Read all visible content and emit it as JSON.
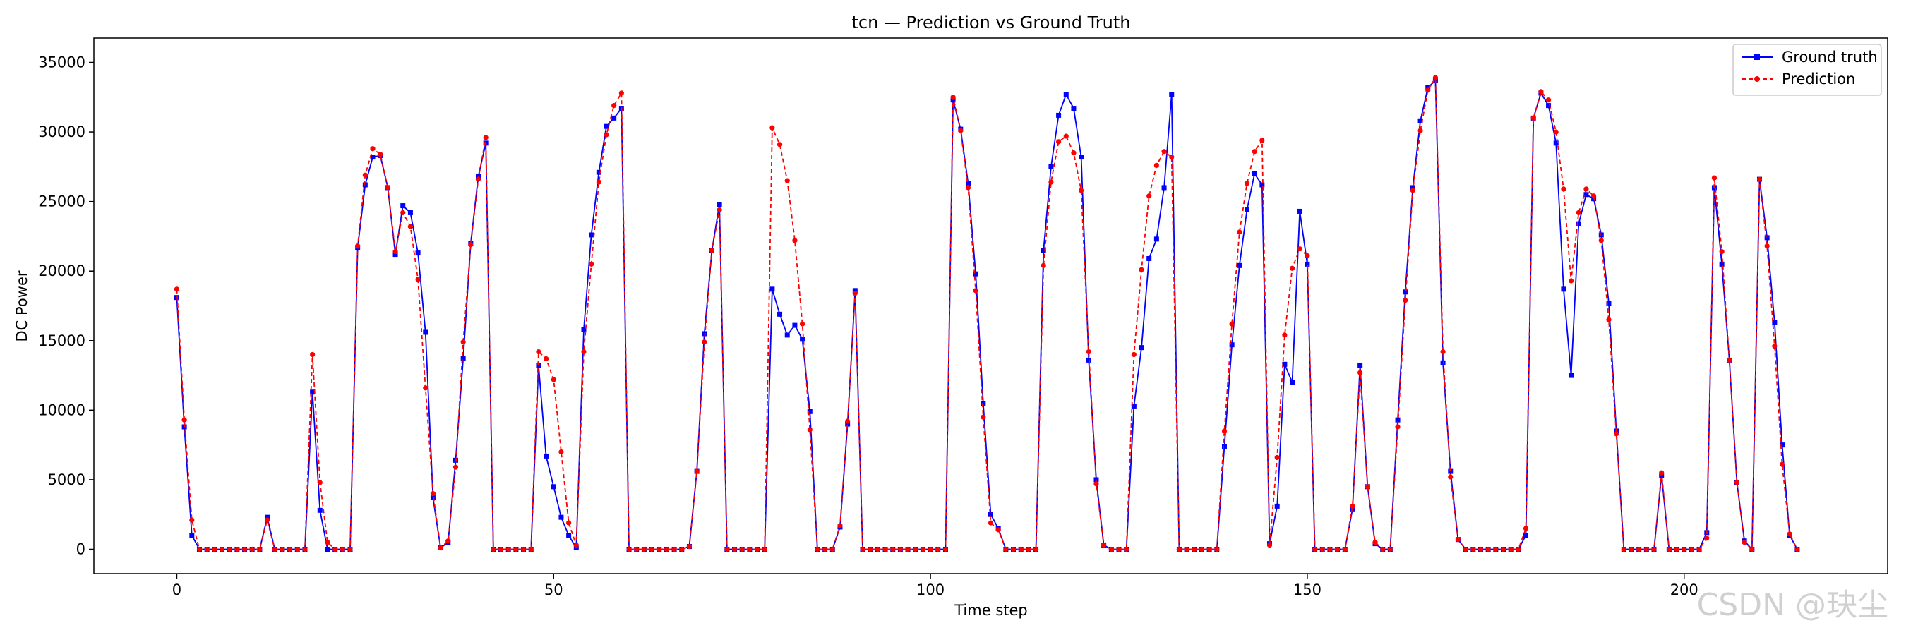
{
  "watermark": "CSDN @玦尘",
  "colors": {
    "ground_truth": "#0000ff",
    "prediction": "#ff0000",
    "axes": "#000000",
    "legend_border": "#cccccc"
  },
  "chart_data": {
    "type": "line",
    "title": "tcn — Prediction vs Ground Truth",
    "xlabel": "Time step",
    "ylabel": "DC Power",
    "xlim": [
      -11,
      227
    ],
    "ylim": [
      -1750,
      36750
    ],
    "xticks": [
      0,
      50,
      100,
      150,
      200
    ],
    "yticks": [
      0,
      5000,
      10000,
      15000,
      20000,
      25000,
      30000,
      35000
    ],
    "legend_position": "top-right",
    "grid": false,
    "series": [
      {
        "name": "Ground truth",
        "line_style": "solid",
        "marker": "square",
        "color_key": "ground_truth",
        "values": [
          18100,
          8800,
          1000,
          0,
          0,
          0,
          0,
          0,
          0,
          0,
          0,
          0,
          2300,
          0,
          0,
          0,
          0,
          0,
          11300,
          2800,
          0,
          0,
          0,
          0,
          21700,
          26200,
          28200,
          28300,
          26000,
          21200,
          24700,
          24200,
          21300,
          15600,
          3700,
          100,
          500,
          6400,
          13700,
          22000,
          26800,
          29200,
          0,
          0,
          0,
          0,
          0,
          0,
          13200,
          6700,
          4500,
          2300,
          1000,
          100,
          15800,
          22600,
          27100,
          30400,
          31000,
          31700,
          0,
          0,
          0,
          0,
          0,
          0,
          0,
          0,
          200,
          5600,
          15500,
          21500,
          24800,
          0,
          0,
          0,
          0,
          0,
          0,
          18700,
          16900,
          15400,
          16100,
          15100,
          9900,
          0,
          0,
          0,
          1600,
          9000,
          18600,
          0,
          0,
          0,
          0,
          0,
          0,
          0,
          0,
          0,
          0,
          0,
          0,
          32300,
          30200,
          26300,
          19800,
          10500,
          2500,
          1500,
          0,
          0,
          0,
          0,
          0,
          21500,
          27500,
          31200,
          32700,
          31700,
          28200,
          13600,
          5000,
          300,
          0,
          0,
          0,
          10300,
          14500,
          20900,
          22300,
          26000,
          32700,
          0,
          0,
          0,
          0,
          0,
          0,
          7400,
          14700,
          20400,
          24400,
          27000,
          26200,
          400,
          3100,
          13300,
          12000,
          24300,
          20500,
          0,
          0,
          0,
          0,
          0,
          2900,
          13200,
          4500,
          400,
          0,
          0,
          9300,
          18500,
          26000,
          30800,
          33200,
          33700,
          13400,
          5600,
          700,
          0,
          0,
          0,
          0,
          0,
          0,
          0,
          0,
          1000,
          31000,
          32800,
          31900,
          29200,
          18700,
          12500,
          23400,
          25500,
          25200,
          22600,
          17700,
          8500,
          0,
          0,
          0,
          0,
          0,
          5300,
          0,
          0,
          0,
          0,
          0,
          1200,
          26000,
          20500,
          13600,
          4800,
          600,
          0,
          26600,
          22400,
          16300,
          7500,
          1000,
          0
        ]
      },
      {
        "name": "Prediction",
        "line_style": "dashed",
        "marker": "circle",
        "color_key": "prediction",
        "values": [
          18700,
          9300,
          2100,
          0,
          0,
          0,
          0,
          0,
          0,
          0,
          0,
          0,
          2100,
          0,
          0,
          0,
          0,
          0,
          14000,
          4800,
          500,
          0,
          0,
          0,
          21800,
          26900,
          28800,
          28400,
          26000,
          21400,
          24200,
          23200,
          19400,
          11600,
          4000,
          100,
          600,
          5900,
          14900,
          21900,
          26600,
          29600,
          0,
          0,
          0,
          0,
          0,
          0,
          14200,
          13700,
          12200,
          7000,
          1900,
          300,
          14200,
          20500,
          26400,
          29800,
          31900,
          32800,
          0,
          0,
          0,
          0,
          0,
          0,
          0,
          0,
          200,
          5600,
          14900,
          21500,
          24400,
          0,
          0,
          0,
          0,
          0,
          0,
          30300,
          29100,
          26500,
          22200,
          16200,
          8600,
          0,
          0,
          0,
          1700,
          9200,
          18400,
          0,
          0,
          0,
          0,
          0,
          0,
          0,
          0,
          0,
          0,
          0,
          0,
          32500,
          30100,
          26000,
          18600,
          9500,
          1900,
          1400,
          0,
          0,
          0,
          0,
          0,
          20400,
          26400,
          29300,
          29700,
          28500,
          25800,
          14200,
          4700,
          300,
          0,
          0,
          0,
          14000,
          20100,
          25400,
          27600,
          28600,
          28200,
          0,
          0,
          0,
          0,
          0,
          0,
          8500,
          16200,
          22800,
          26300,
          28600,
          29400,
          300,
          6600,
          15400,
          20200,
          21600,
          21100,
          0,
          0,
          0,
          0,
          0,
          3100,
          12700,
          4500,
          500,
          0,
          0,
          8800,
          17900,
          25800,
          30100,
          33000,
          33900,
          14200,
          5200,
          700,
          0,
          0,
          0,
          0,
          0,
          0,
          0,
          0,
          1500,
          31000,
          32900,
          32300,
          30000,
          25900,
          19300,
          24200,
          25900,
          25400,
          22200,
          16500,
          8300,
          0,
          0,
          0,
          0,
          0,
          5500,
          0,
          0,
          0,
          0,
          0,
          800,
          26700,
          21400,
          13600,
          4800,
          500,
          0,
          26600,
          21800,
          14600,
          6100,
          1100,
          0
        ]
      }
    ]
  }
}
